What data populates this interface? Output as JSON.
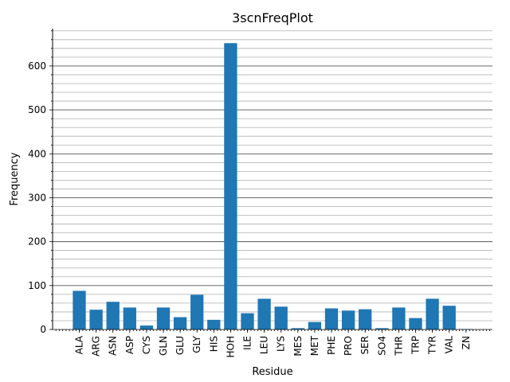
{
  "chart_data": {
    "type": "bar",
    "title": "3scnFreqPlot",
    "xlabel": "Residue",
    "ylabel": "Frequency",
    "categories": [
      "ALA",
      "ARG",
      "ASN",
      "ASP",
      "CYS",
      "GLN",
      "GLU",
      "GLY",
      "HIS",
      "HOH",
      "ILE",
      "LEU",
      "LYS",
      "MES",
      "MET",
      "PHE",
      "PRO",
      "SER",
      "SO4",
      "THR",
      "TRP",
      "TYR",
      "VAL",
      "ZN"
    ],
    "values": [
      88,
      45,
      63,
      50,
      9,
      50,
      28,
      79,
      22,
      652,
      37,
      70,
      52,
      3,
      17,
      48,
      43,
      46,
      3,
      50,
      26,
      70,
      54,
      1
    ],
    "ylim": [
      0,
      685
    ],
    "yticks": [
      0,
      100,
      200,
      300,
      400,
      500,
      600
    ],
    "ytick_labels": [
      "0",
      "100",
      "200",
      "300",
      "400",
      "500",
      "600"
    ],
    "grid": "major and minor horizontal lines",
    "bar_color": "#1f77b4"
  }
}
